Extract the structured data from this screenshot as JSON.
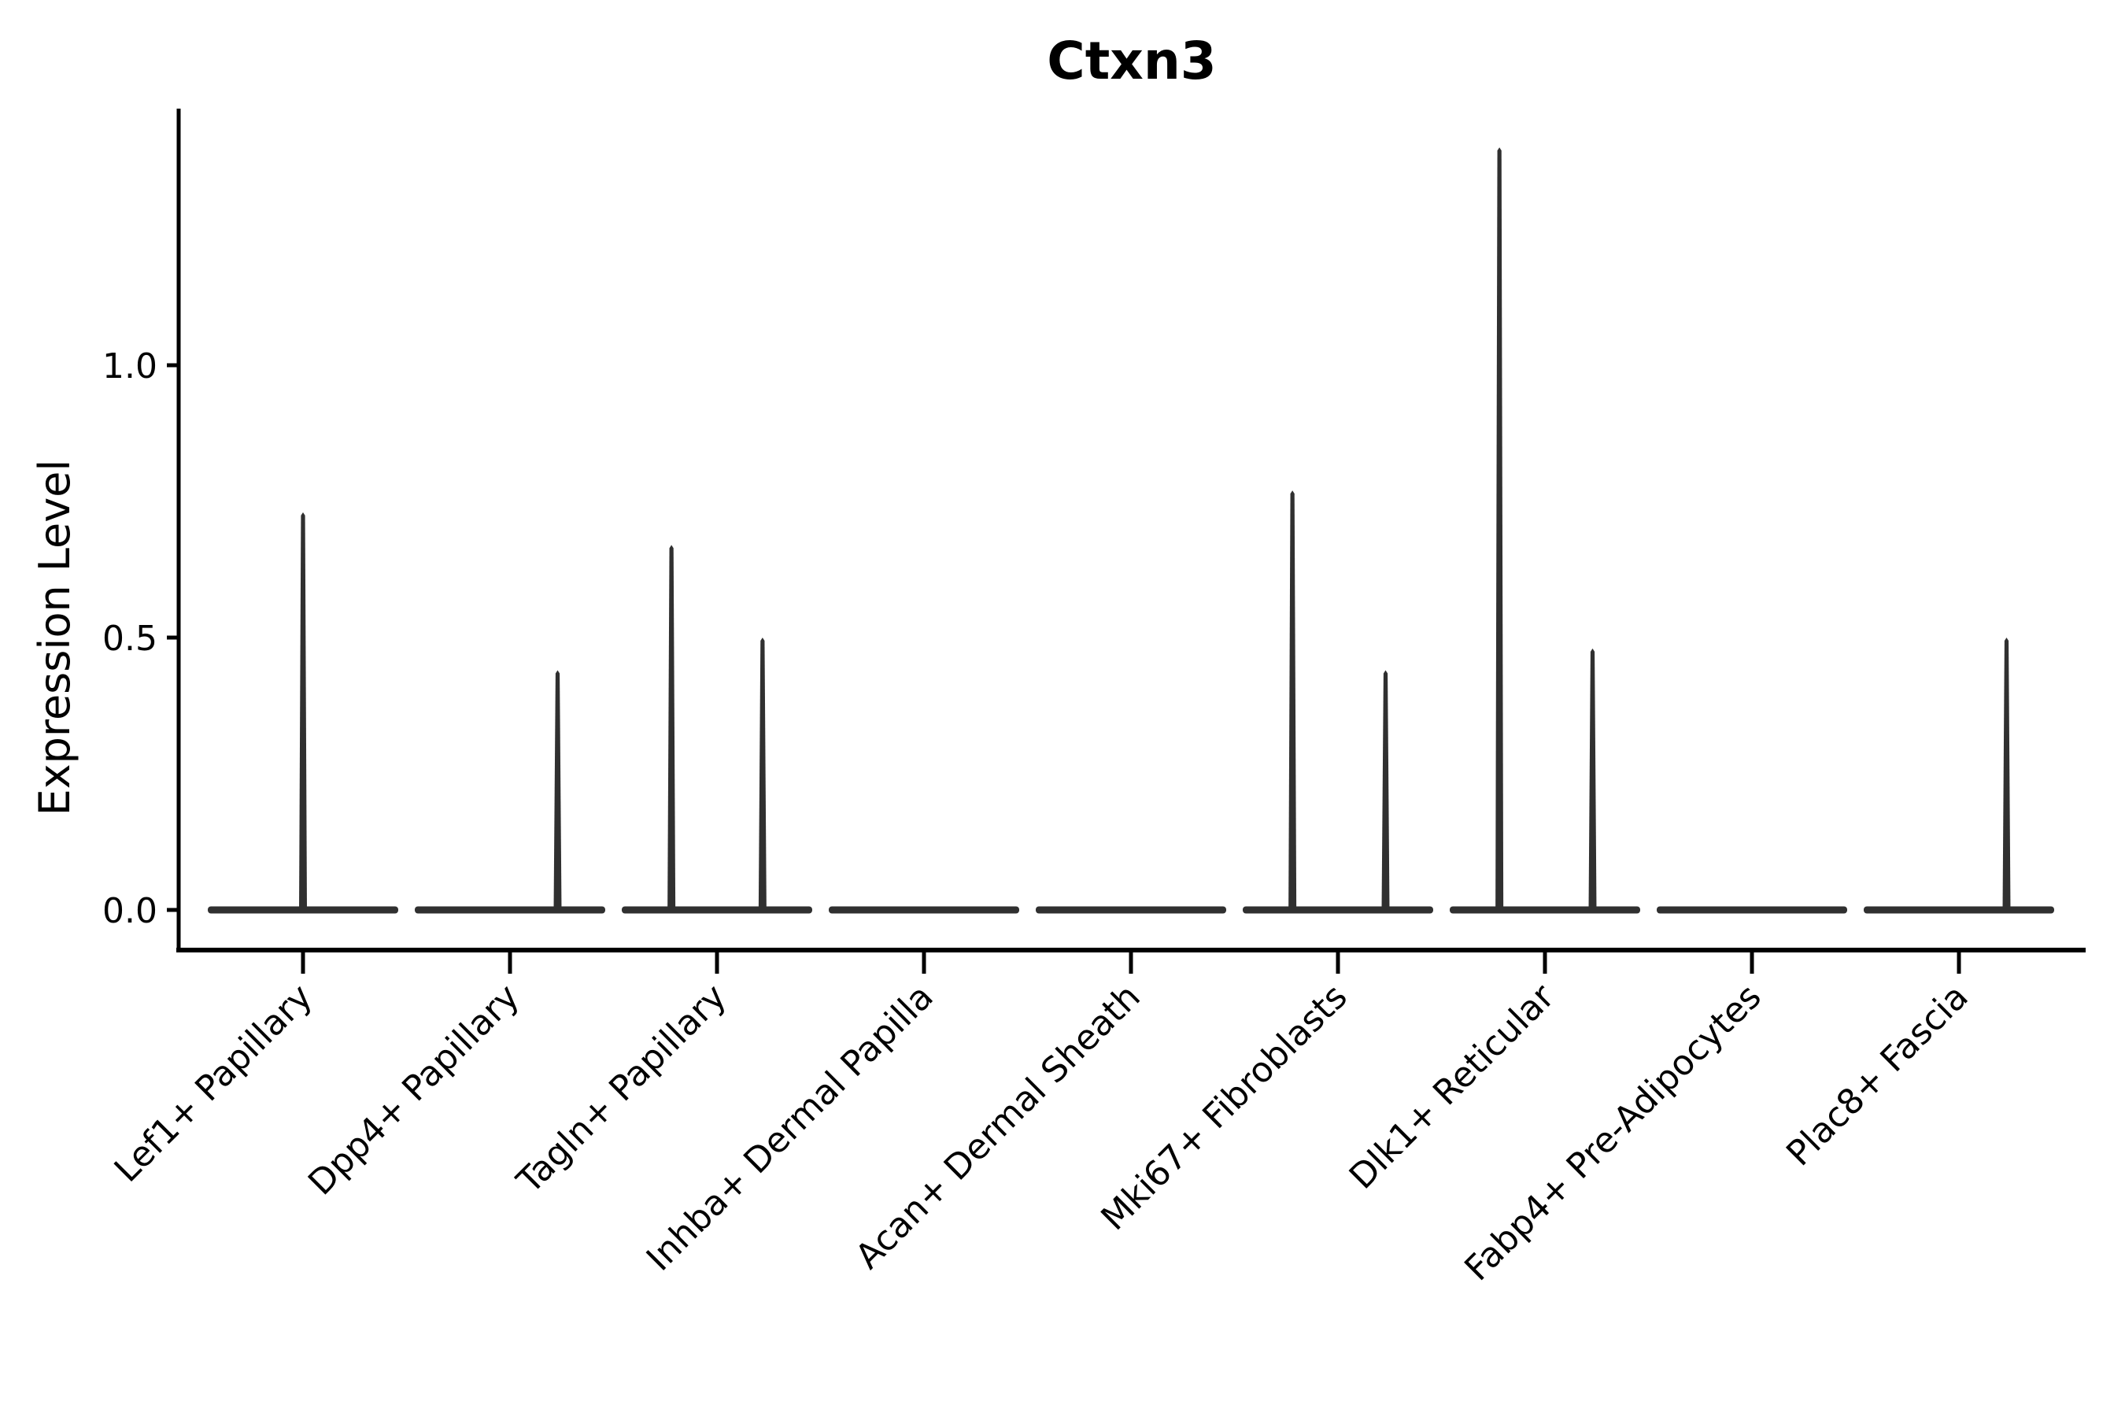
{
  "page": {
    "background_color": "#ffffff",
    "axis_color": "#000000",
    "violin_color": "#303030"
  },
  "chart_data": {
    "type": "violin",
    "title": "Ctxn3",
    "ylabel": "Expression Level",
    "xlabel": "",
    "legend": "none",
    "grid": false,
    "x_tick_rotation_deg": 45,
    "categories": [
      "Lef1+ Papillary",
      "Dpp4+ Papillary",
      "Tagln+ Papillary",
      "Inhba+ Dermal Papilla",
      "Acan+ Dermal Sheath",
      "Mki67+ Fibroblasts",
      "Dlk1+ Reticular",
      "Fabp4+ Pre-Adipocytes",
      "Plac8+ Fascia"
    ],
    "ytick_labels": [
      "0.0",
      "0.5",
      "1.0"
    ],
    "ytick_values": [
      0.0,
      0.5,
      1.0
    ],
    "ylim": [
      -0.07,
      1.47
    ],
    "description": "Violin plot of gene expression; each cluster shows a flat density bar at 0 with thin vertical density spikes reaching the maximum expressed values.",
    "violins": [
      {
        "category": "Lef1+ Papillary",
        "base_value": 0,
        "spikes": [
          {
            "offset_frac": 0.0,
            "value": 0.73
          }
        ]
      },
      {
        "category": "Dpp4+ Papillary",
        "base_value": 0,
        "spikes": [
          {
            "offset_frac": 0.23,
            "value": 0.44
          }
        ]
      },
      {
        "category": "Tagln+ Papillary",
        "base_value": 0,
        "spikes": [
          {
            "offset_frac": -0.22,
            "value": 0.67
          },
          {
            "offset_frac": 0.22,
            "value": 0.5
          }
        ]
      },
      {
        "category": "Inhba+ Dermal Papilla",
        "base_value": 0,
        "spikes": []
      },
      {
        "category": "Acan+ Dermal Sheath",
        "base_value": 0,
        "spikes": []
      },
      {
        "category": "Mki67+ Fibroblasts",
        "base_value": 0,
        "spikes": [
          {
            "offset_frac": -0.22,
            "value": 0.77
          },
          {
            "offset_frac": 0.23,
            "value": 0.44
          }
        ]
      },
      {
        "category": "Dlk1+ Reticular",
        "base_value": 0,
        "spikes": [
          {
            "offset_frac": -0.22,
            "value": 1.4
          },
          {
            "offset_frac": 0.23,
            "value": 0.48
          }
        ]
      },
      {
        "category": "Fabp4+ Pre-Adipocytes",
        "base_value": 0,
        "spikes": []
      },
      {
        "category": "Plac8+ Fascia",
        "base_value": 0,
        "spikes": [
          {
            "offset_frac": 0.23,
            "value": 0.5
          }
        ]
      }
    ]
  }
}
